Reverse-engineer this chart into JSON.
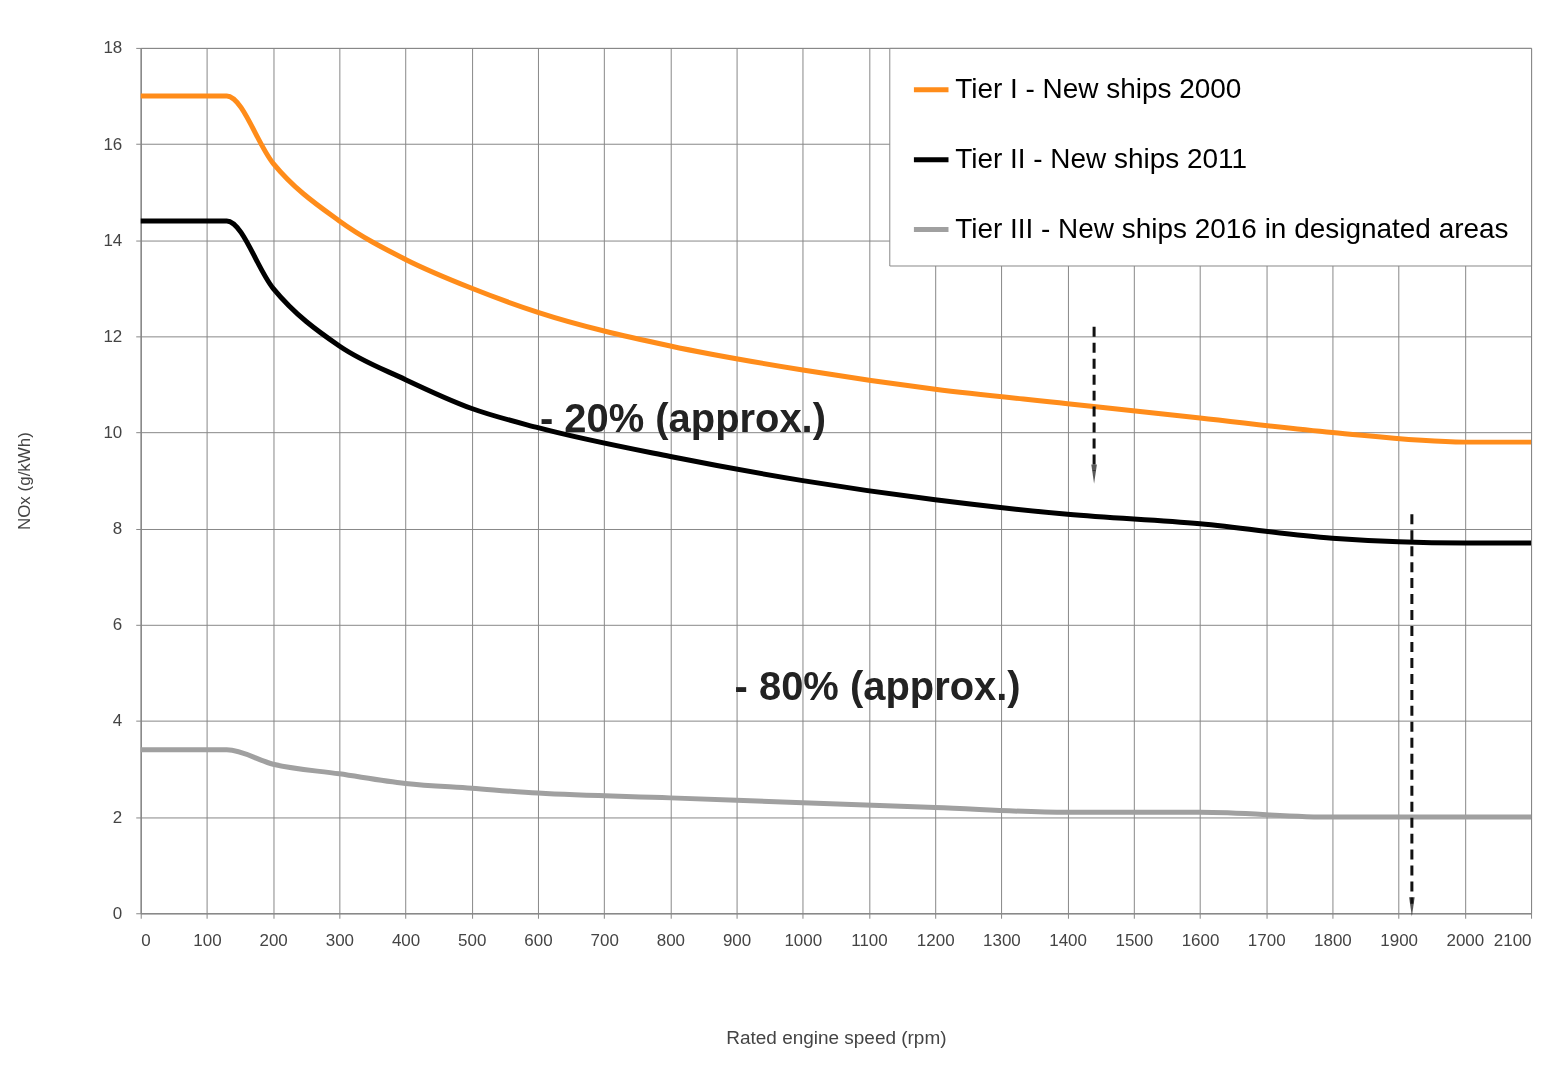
{
  "chart_data": {
    "type": "line",
    "xlabel": "Rated engine speed (rpm)",
    "ylabel": "NOx (g/kWh)",
    "xlim": [
      0,
      2100
    ],
    "xticks": [
      0,
      100,
      200,
      300,
      400,
      500,
      600,
      700,
      800,
      900,
      1000,
      1100,
      1200,
      1300,
      1400,
      1500,
      1600,
      1700,
      1800,
      1900,
      2000,
      2100
    ],
    "ylim": [
      0,
      18
    ],
    "yticks": [
      0,
      2,
      4,
      6,
      8,
      10,
      12,
      14,
      16,
      18
    ],
    "grid": true,
    "legend": "top right",
    "marker": "none",
    "line_style": "solid",
    "x": [
      0,
      130,
      200,
      300,
      400,
      500,
      600,
      800,
      1000,
      1200,
      1400,
      1600,
      1800,
      2000,
      2100
    ],
    "series": [
      {
        "name": "Tier I - New ships 2000",
        "color": "#ff8c1a",
        "values": [
          17.0,
          17.0,
          15.6,
          14.4,
          13.6,
          13.0,
          12.5,
          11.8,
          11.3,
          10.9,
          10.6,
          10.3,
          10.0,
          9.8,
          9.8
        ]
      },
      {
        "name": "Tier II - New ships 2011",
        "color": "#000000",
        "values": [
          14.4,
          14.4,
          13.0,
          11.8,
          11.1,
          10.5,
          10.1,
          9.5,
          9.0,
          8.6,
          8.3,
          8.1,
          7.8,
          7.7,
          7.7
        ]
      },
      {
        "name": "Tier III - New ships 2016 in designated areas",
        "color": "#a0a0a0",
        "values": [
          3.4,
          3.4,
          3.1,
          2.9,
          2.7,
          2.6,
          2.5,
          2.4,
          2.3,
          2.2,
          2.1,
          2.1,
          2.0,
          2.0,
          2.0
        ]
      }
    ],
    "annotations": [
      "- 20% (approx.)",
      "- 80% (approx.)"
    ]
  }
}
